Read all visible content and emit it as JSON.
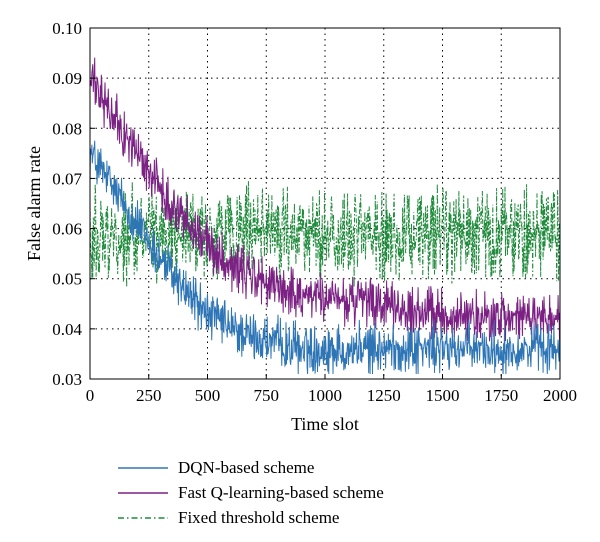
{
  "chart_data": {
    "type": "line",
    "xlabel": "Time slot",
    "ylabel": "False alarm rate",
    "xlim": [
      0,
      2000
    ],
    "ylim": [
      0.03,
      0.1
    ],
    "xticks": [
      0,
      250,
      500,
      750,
      1000,
      1250,
      1500,
      1750,
      2000
    ],
    "yticks": [
      0.03,
      0.04,
      0.05,
      0.06,
      0.07,
      0.08,
      0.09,
      0.1
    ],
    "xtick_labels": [
      "0",
      "250",
      "500",
      "750",
      "1000",
      "1250",
      "1500",
      "1750",
      "2000"
    ],
    "ytick_labels": [
      "0.03",
      "0.04",
      "0.05",
      "0.06",
      "0.07",
      "0.08",
      "0.09",
      "0.10"
    ],
    "grid": true,
    "legend_position": "bottom",
    "series": [
      {
        "name": "DQN-based scheme",
        "color": "#2e75b6",
        "style": "solid",
        "x": [
          0,
          100,
          200,
          300,
          400,
          500,
          600,
          700,
          800,
          900,
          1000,
          1200,
          1400,
          1600,
          1800,
          2000
        ],
        "y": [
          0.075,
          0.068,
          0.061,
          0.054,
          0.048,
          0.043,
          0.04,
          0.038,
          0.037,
          0.036,
          0.036,
          0.036,
          0.036,
          0.036,
          0.036,
          0.036
        ],
        "noise": 0.006
      },
      {
        "name": "Fast Q-learning-based scheme",
        "color": "#7b2183",
        "style": "solid",
        "x": [
          0,
          100,
          200,
          300,
          400,
          500,
          600,
          700,
          800,
          900,
          1000,
          1200,
          1400,
          1600,
          1800,
          2000
        ],
        "y": [
          0.09,
          0.082,
          0.075,
          0.068,
          0.062,
          0.057,
          0.053,
          0.05,
          0.048,
          0.047,
          0.046,
          0.045,
          0.043,
          0.0425,
          0.042,
          0.042
        ],
        "noise": 0.006
      },
      {
        "name": "Fixed threshold scheme",
        "color": "#1e8b3a",
        "style": "dashdot",
        "x": [
          0,
          2000
        ],
        "y": [
          0.059,
          0.059
        ],
        "noise": 0.011
      }
    ]
  }
}
